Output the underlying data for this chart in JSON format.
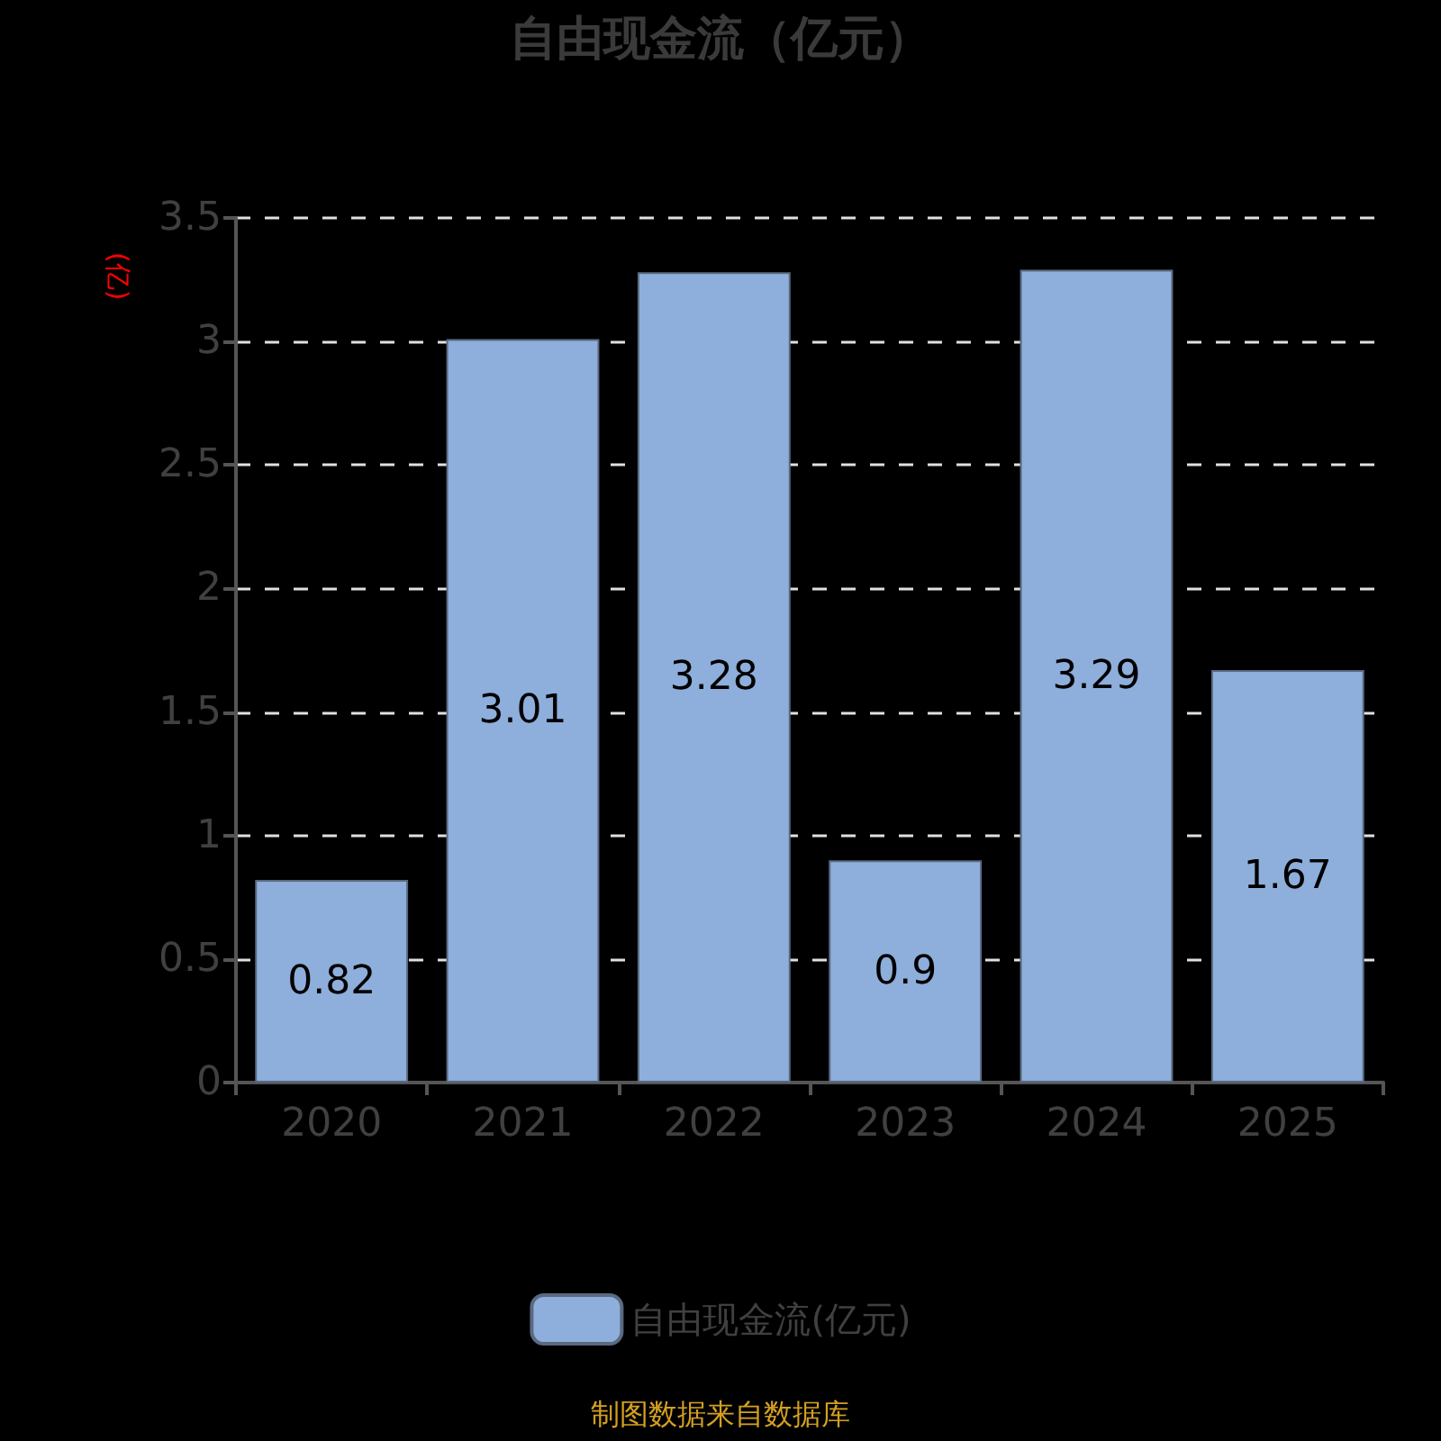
{
  "chart_data": {
    "type": "bar",
    "title": "自由现金流（亿元）",
    "ylabel": "(亿)",
    "categories": [
      "2020",
      "2021",
      "2022",
      "2023",
      "2024",
      "2025"
    ],
    "series": [
      {
        "name": "自由现金流(亿元)",
        "color": "#8eaedb",
        "values": [
          0.82,
          3.01,
          3.28,
          0.9,
          3.29,
          1.67
        ]
      }
    ],
    "ylim": [
      0,
      3.5
    ],
    "yticks": [
      0,
      0.5,
      1,
      1.5,
      2,
      2.5,
      3,
      3.5
    ],
    "grid": "y",
    "legend": "bottom",
    "data_labels": true,
    "annotations": [
      "制图数据来自数据库"
    ]
  }
}
